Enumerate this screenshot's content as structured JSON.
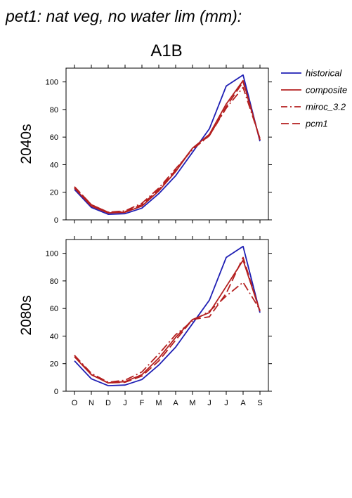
{
  "figure": {
    "title": "pet1: nat veg, no water lim (mm):",
    "scenario": "A1B"
  },
  "colors": {
    "historical": "#1f1fb4",
    "composite": "#b41f1f",
    "miroc_3.2": "#b41f1f",
    "pcm1": "#b41f1f",
    "axis": "#000000"
  },
  "legend": [
    {
      "name": "historical",
      "style": "solid",
      "color": "#1f1fb4"
    },
    {
      "name": "composite",
      "style": "solid",
      "color": "#b41f1f"
    },
    {
      "name": "miroc_3.2",
      "style": "dashdot",
      "color": "#b41f1f"
    },
    {
      "name": "pcm1",
      "style": "dashed",
      "color": "#b41f1f"
    }
  ],
  "chart_data": [
    {
      "type": "line",
      "ylabel": "2040s",
      "categories": [
        "O",
        "N",
        "D",
        "J",
        "F",
        "M",
        "A",
        "M",
        "J",
        "J",
        "A",
        "S"
      ],
      "ylim": [
        0,
        110
      ],
      "yticks": [
        0,
        20,
        40,
        60,
        80,
        100
      ],
      "series": [
        {
          "name": "historical",
          "values": [
            22,
            9,
            4,
            4.5,
            8.5,
            19,
            32,
            49,
            66,
            97,
            105,
            57
          ]
        },
        {
          "name": "composite",
          "values": [
            23,
            10,
            5,
            5.5,
            10,
            21,
            35,
            52,
            62,
            84,
            101,
            58
          ]
        },
        {
          "name": "miroc_3.2",
          "values": [
            24,
            11,
            5.5,
            6.5,
            12,
            23,
            37,
            51,
            61,
            81,
            96,
            59
          ]
        },
        {
          "name": "pcm1",
          "values": [
            24,
            11,
            5.5,
            6,
            11,
            22,
            36,
            52,
            61,
            82,
            100,
            58
          ]
        }
      ]
    },
    {
      "type": "line",
      "ylabel": "2080s",
      "categories": [
        "O",
        "N",
        "D",
        "J",
        "F",
        "M",
        "A",
        "M",
        "J",
        "J",
        "A",
        "S"
      ],
      "ylim": [
        0,
        110
      ],
      "yticks": [
        0,
        20,
        40,
        60,
        80,
        100
      ],
      "series": [
        {
          "name": "historical",
          "values": [
            22,
            9,
            4,
            4.5,
            8.5,
            19,
            32,
            49,
            66,
            97,
            105,
            57
          ]
        },
        {
          "name": "composite",
          "values": [
            25,
            12,
            6,
            7,
            12,
            24,
            39,
            52,
            57,
            76,
            95,
            58
          ]
        },
        {
          "name": "miroc_3.2",
          "values": [
            26,
            13,
            6.5,
            8,
            14,
            27,
            41,
            51,
            58,
            69,
            79,
            59
          ]
        },
        {
          "name": "pcm1",
          "values": [
            26,
            12,
            6,
            6.5,
            11,
            22,
            37,
            52,
            54,
            71,
            97,
            58
          ]
        }
      ]
    }
  ]
}
